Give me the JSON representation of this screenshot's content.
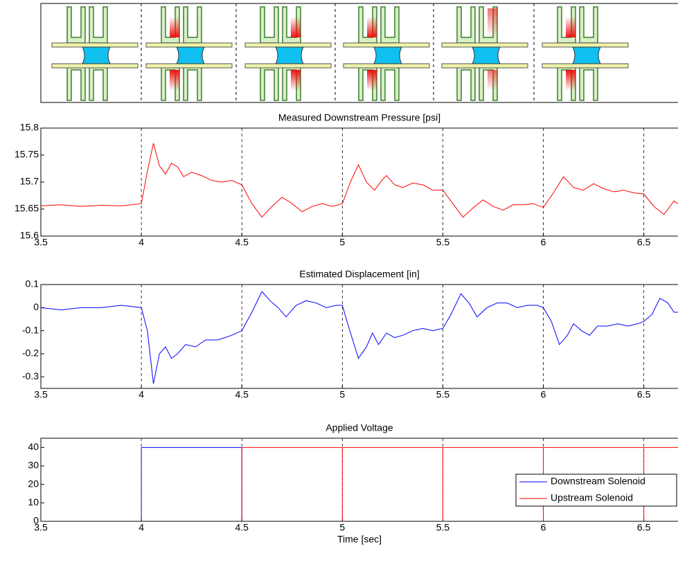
{
  "chart_data": [
    {
      "type": "line",
      "title": "Measured Downstream Pressure [psi]",
      "xlim": [
        3.5,
        6.67
      ],
      "xticks": [
        3.5,
        4,
        4.5,
        5,
        5.5,
        6,
        6.5
      ],
      "xgrid": true,
      "ylim": [
        15.6,
        15.8
      ],
      "yticks": [
        15.6,
        15.65,
        15.7,
        15.75,
        15.8
      ],
      "x": [
        3.5,
        3.6,
        3.7,
        3.8,
        3.9,
        4.0,
        4.03,
        4.06,
        4.09,
        4.12,
        4.15,
        4.18,
        4.21,
        4.25,
        4.3,
        4.35,
        4.4,
        4.45,
        4.5,
        4.55,
        4.6,
        4.65,
        4.7,
        4.75,
        4.8,
        4.85,
        4.9,
        4.95,
        5.0,
        5.04,
        5.08,
        5.12,
        5.16,
        5.2,
        5.22,
        5.26,
        5.3,
        5.35,
        5.4,
        5.45,
        5.5,
        5.55,
        5.6,
        5.65,
        5.7,
        5.75,
        5.8,
        5.85,
        5.9,
        5.95,
        6.0,
        6.05,
        6.1,
        6.15,
        6.2,
        6.25,
        6.3,
        6.35,
        6.4,
        6.45,
        6.5,
        6.55,
        6.6,
        6.65,
        6.67
      ],
      "series": [
        {
          "color": "#ff0000",
          "values": [
            15.656,
            15.658,
            15.655,
            15.657,
            15.656,
            15.66,
            15.72,
            15.772,
            15.73,
            15.715,
            15.735,
            15.728,
            15.71,
            15.718,
            15.712,
            15.703,
            15.7,
            15.703,
            15.695,
            15.66,
            15.635,
            15.655,
            15.672,
            15.66,
            15.645,
            15.655,
            15.66,
            15.655,
            15.66,
            15.7,
            15.732,
            15.7,
            15.685,
            15.705,
            15.712,
            15.695,
            15.69,
            15.698,
            15.695,
            15.685,
            15.685,
            15.66,
            15.635,
            15.652,
            15.667,
            15.655,
            15.648,
            15.658,
            15.658,
            15.66,
            15.653,
            15.68,
            15.71,
            15.69,
            15.685,
            15.697,
            15.688,
            15.682,
            15.685,
            15.68,
            15.678,
            15.655,
            15.64,
            15.665,
            15.66
          ]
        }
      ]
    },
    {
      "type": "line",
      "title": "Estimated Displacement [in]",
      "xlim": [
        3.5,
        6.67
      ],
      "xticks": [
        3.5,
        4,
        4.5,
        5,
        5.5,
        6,
        6.5
      ],
      "xgrid": true,
      "ylim": [
        -0.35,
        0.1
      ],
      "yticks": [
        -0.3,
        -0.2,
        -0.1,
        0,
        0.1
      ],
      "x": [
        3.5,
        3.6,
        3.7,
        3.8,
        3.9,
        4.0,
        4.03,
        4.06,
        4.09,
        4.12,
        4.15,
        4.18,
        4.22,
        4.27,
        4.32,
        4.38,
        4.45,
        4.5,
        4.55,
        4.6,
        4.64,
        4.68,
        4.72,
        4.77,
        4.82,
        4.87,
        4.92,
        4.97,
        5.0,
        5.03,
        5.08,
        5.12,
        5.15,
        5.18,
        5.22,
        5.26,
        5.3,
        5.35,
        5.4,
        5.45,
        5.5,
        5.54,
        5.59,
        5.63,
        5.67,
        5.72,
        5.77,
        5.82,
        5.87,
        5.92,
        5.97,
        6.0,
        6.04,
        6.08,
        6.12,
        6.15,
        6.19,
        6.23,
        6.27,
        6.32,
        6.37,
        6.42,
        6.47,
        6.5,
        6.54,
        6.58,
        6.62,
        6.65,
        6.67
      ],
      "series": [
        {
          "color": "#0000ff",
          "values": [
            0.0,
            -0.01,
            0.0,
            0.0,
            0.01,
            0.0,
            -0.1,
            -0.33,
            -0.2,
            -0.17,
            -0.22,
            -0.2,
            -0.16,
            -0.17,
            -0.14,
            -0.14,
            -0.12,
            -0.1,
            -0.02,
            0.07,
            0.03,
            0.0,
            -0.04,
            0.01,
            0.03,
            0.02,
            0.0,
            0.01,
            0.01,
            -0.08,
            -0.22,
            -0.17,
            -0.11,
            -0.16,
            -0.11,
            -0.13,
            -0.12,
            -0.1,
            -0.09,
            -0.1,
            -0.09,
            -0.03,
            0.06,
            0.02,
            -0.04,
            0.0,
            0.02,
            0.02,
            0.0,
            0.01,
            0.01,
            0.0,
            -0.06,
            -0.16,
            -0.12,
            -0.07,
            -0.1,
            -0.12,
            -0.08,
            -0.08,
            -0.07,
            -0.08,
            -0.07,
            -0.06,
            -0.03,
            0.04,
            0.02,
            -0.02,
            -0.02
          ]
        }
      ]
    },
    {
      "type": "line",
      "title": "Applied Voltage",
      "xlabel": "Time [sec]",
      "xlim": [
        3.5,
        6.67
      ],
      "xticks": [
        3.5,
        4,
        4.5,
        5,
        5.5,
        6,
        6.5
      ],
      "xgrid": true,
      "ylim": [
        0,
        45
      ],
      "yticks": [
        0,
        10,
        20,
        30,
        40
      ],
      "legend": "right",
      "series": [
        {
          "name": "Downstream Solenoid",
          "color": "#0000ff",
          "x": [
            3.5,
            4,
            4,
            4.5,
            4.5,
            6.67
          ],
          "values": [
            0,
            0,
            40,
            40,
            0,
            0
          ]
        },
        {
          "name": "Upstream Solenoid",
          "color": "#ff0000",
          "x": [
            3.5,
            4.5,
            4.5,
            5,
            5,
            5,
            5.5,
            5.5,
            5.5,
            6,
            6,
            6,
            6.5,
            6.5,
            6.5,
            6.67
          ],
          "values": [
            0,
            0,
            40,
            40,
            0,
            40,
            40,
            0,
            40,
            40,
            0,
            40,
            40,
            0,
            40,
            40
          ]
        }
      ]
    }
  ]
}
